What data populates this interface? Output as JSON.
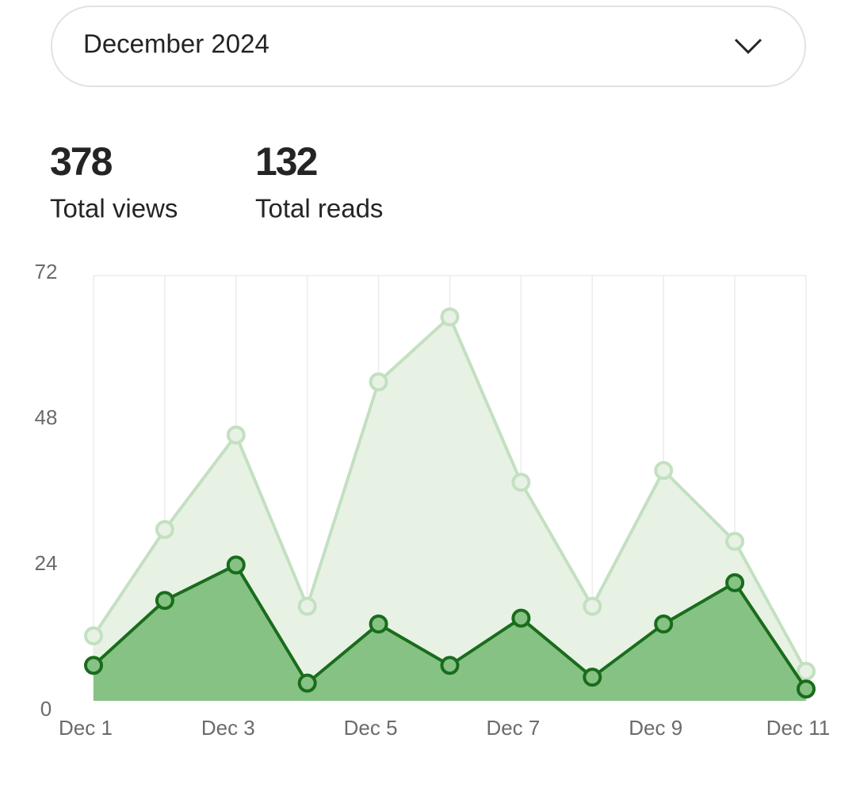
{
  "header": {
    "selected_month": "December 2024"
  },
  "stats": [
    {
      "value": "378",
      "label": "Total views"
    },
    {
      "value": "132",
      "label": "Total reads"
    }
  ],
  "chart_data": {
    "type": "area",
    "categories": [
      "Dec 1",
      null,
      "Dec 3",
      null,
      "Dec 5",
      null,
      "Dec 7",
      null,
      "Dec 9",
      null,
      "Dec 11"
    ],
    "series": [
      {
        "color": "#c3e0c1",
        "area_color": "#e7f2e5",
        "values": [
          11,
          29,
          45,
          16,
          54,
          65,
          37,
          16,
          39,
          27,
          5
        ]
      },
      {
        "color": "#196c1b",
        "area_color": "#86c284",
        "values": [
          6,
          17,
          23,
          3,
          13,
          6,
          14,
          4,
          13,
          20,
          2
        ]
      }
    ],
    "ylim": [
      0,
      72
    ],
    "yticks": [
      0,
      24,
      48,
      72
    ],
    "grid": true
  }
}
